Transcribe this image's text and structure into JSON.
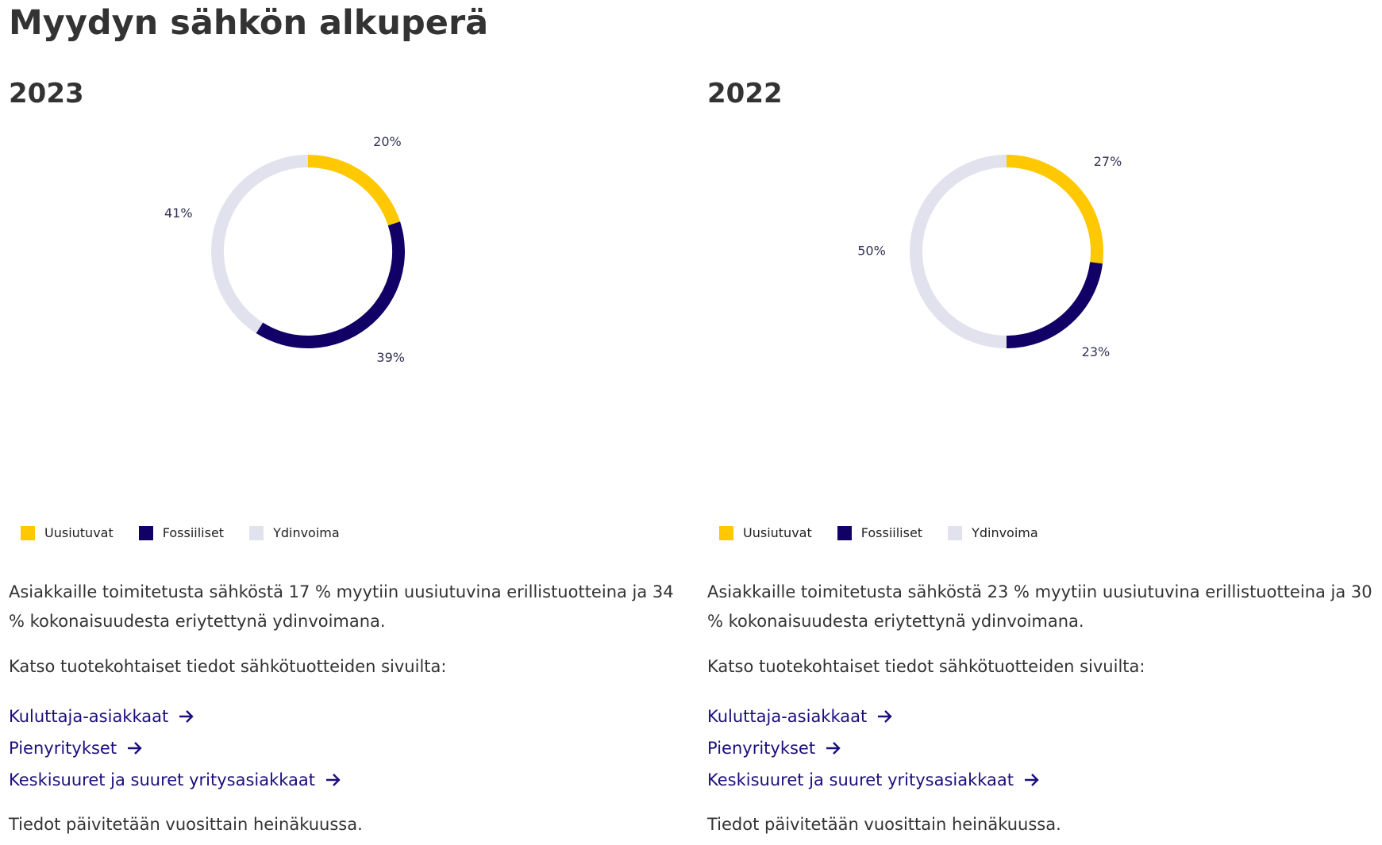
{
  "page": {
    "title": "Myydyn sähkön alkuperä"
  },
  "colors": {
    "renewables": "#FFC800",
    "fossil": "#110066",
    "nuclear": "#E2E2EE",
    "link": "#1B0F7E"
  },
  "legend": {
    "renewables": "Uusiutuvat",
    "fossil": "Fossiiliset",
    "nuclear": "Ydinvoima"
  },
  "panels": [
    {
      "year": "2023",
      "labels": [
        "20%",
        "39%",
        "41%"
      ],
      "description": "Asiakkaille toimitetusta sähköstä 17 % myytiin uusiutuvina erillistuotteina ja 34 % kokonaisuudesta eriytettynä ydinvoimana.",
      "subtext": "Katso tuotekohtaiset tiedot sähkötuotteiden sivuilta:",
      "links": [
        "Kuluttaja-asiakkaat",
        "Pienyritykset",
        "Keskisuuret ja suuret yritysasiakkaat"
      ],
      "footer": "Tiedot päivitetään vuosittain heinäkuussa."
    },
    {
      "year": "2022",
      "labels": [
        "27%",
        "23%",
        "50%"
      ],
      "description": "Asiakkaille toimitetusta sähköstä 23 % myytiin uusiutuvina erillistuotteina ja 30 % kokonaisuudesta eriytettynä ydinvoimana.",
      "subtext": "Katso tuotekohtaiset tiedot sähkötuotteiden sivuilta:",
      "links": [
        "Kuluttaja-asiakkaat",
        "Pienyritykset",
        "Keskisuuret ja suuret yritysasiakkaat"
      ],
      "footer": "Tiedot päivitetään vuosittain heinäkuussa."
    }
  ],
  "chart_data": [
    {
      "type": "pie",
      "title": "2023",
      "categories": [
        "Uusiutuvat",
        "Fossiiliset",
        "Ydinvoima"
      ],
      "values": [
        20,
        39,
        41
      ],
      "unit": "%",
      "legend_position": "bottom-left"
    },
    {
      "type": "pie",
      "title": "2022",
      "categories": [
        "Uusiutuvat",
        "Fossiiliset",
        "Ydinvoima"
      ],
      "values": [
        27,
        23,
        50
      ],
      "unit": "%",
      "legend_position": "bottom-left"
    }
  ]
}
